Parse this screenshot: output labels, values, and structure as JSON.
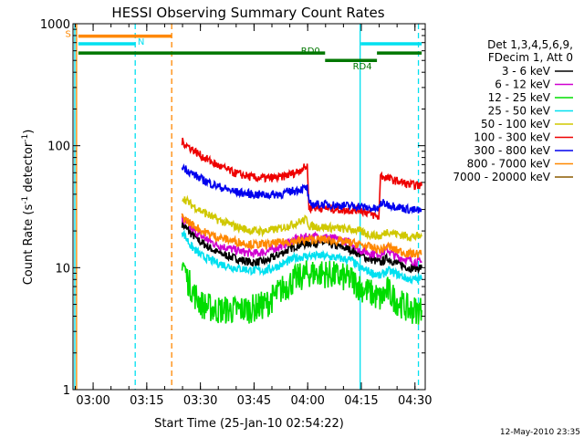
{
  "chart_data": {
    "type": "line",
    "title": "HESSI Observing Summary Count Rates",
    "xlabel": "Start Time (25-Jan-10 02:54:22)",
    "ylabel_main": "Count Rate (s",
    "ylabel_sup1": "-1",
    "ylabel_mid": " detector",
    "ylabel_sup2": "-1",
    "ylabel_end": ")",
    "x_unit": "minutes since 02:54:22 (axis start)",
    "xlim": [
      0,
      98.5
    ],
    "ylim": [
      1,
      1000
    ],
    "yscale": "log",
    "x_ticks": [
      {
        "label": "03:00",
        "x": 5.63
      },
      {
        "label": "03:15",
        "x": 20.63
      },
      {
        "label": "03:30",
        "x": 35.63
      },
      {
        "label": "03:45",
        "x": 50.63
      },
      {
        "label": "04:00",
        "x": 65.63
      },
      {
        "label": "04:15",
        "x": 80.63
      },
      {
        "label": "04:30",
        "x": 95.63
      }
    ],
    "y_ticks": [
      {
        "label": "1",
        "y": 1
      },
      {
        "label": "10",
        "y": 10
      },
      {
        "label": "100",
        "y": 100
      },
      {
        "label": "1000",
        "y": 1000
      }
    ],
    "legend": {
      "header": [
        "Det 1,3,4,5,6,9,",
        "FDecim 1, Att 0"
      ],
      "placement": "right"
    },
    "series": [
      {
        "name": "3 - 6 keV",
        "color": "#000000",
        "points": [
          [
            30.5,
            23
          ],
          [
            33,
            19
          ],
          [
            36,
            16
          ],
          [
            40,
            13.5
          ],
          [
            45,
            12
          ],
          [
            50,
            11
          ],
          [
            54,
            11.3
          ],
          [
            58,
            13
          ],
          [
            62,
            15
          ],
          [
            66,
            16
          ],
          [
            70,
            16
          ],
          [
            74,
            15
          ],
          [
            78,
            14
          ],
          [
            80,
            13
          ],
          [
            82,
            12
          ],
          [
            84,
            11.5
          ],
          [
            86,
            11
          ],
          [
            88,
            12
          ],
          [
            90,
            11
          ],
          [
            92,
            10.5
          ],
          [
            94,
            10
          ],
          [
            97.5,
            10
          ]
        ]
      },
      {
        "name": "6 - 12 keV",
        "color": "#d000d0",
        "points": [
          [
            30.5,
            25
          ],
          [
            33,
            21
          ],
          [
            36,
            18
          ],
          [
            40,
            15.5
          ],
          [
            45,
            14
          ],
          [
            50,
            13
          ],
          [
            54,
            13.5
          ],
          [
            58,
            15
          ],
          [
            62,
            17
          ],
          [
            66,
            18
          ],
          [
            70,
            18
          ],
          [
            74,
            17
          ],
          [
            78,
            16
          ],
          [
            80,
            14
          ],
          [
            82,
            13.5
          ],
          [
            84,
            13
          ],
          [
            86,
            13
          ],
          [
            88,
            14
          ],
          [
            90,
            12.5
          ],
          [
            92,
            12
          ],
          [
            94,
            11.5
          ],
          [
            97.5,
            11
          ]
        ]
      },
      {
        "name": "12 - 25 keV",
        "color": "#00dd00",
        "points": [
          [
            30.5,
            12
          ],
          [
            32,
            8
          ],
          [
            34,
            6
          ],
          [
            36,
            5
          ],
          [
            40,
            4.5
          ],
          [
            45,
            4.5
          ],
          [
            50,
            4.6
          ],
          [
            54,
            5
          ],
          [
            58,
            6.5
          ],
          [
            62,
            8
          ],
          [
            66,
            9
          ],
          [
            70,
            9
          ],
          [
            74,
            8.5
          ],
          [
            78,
            8
          ],
          [
            80,
            7
          ],
          [
            82,
            6.5
          ],
          [
            84,
            6
          ],
          [
            86,
            5.5
          ],
          [
            88,
            6.5
          ],
          [
            90,
            5.5
          ],
          [
            92,
            5
          ],
          [
            94,
            4.5
          ],
          [
            97.5,
            4.5
          ]
        ]
      },
      {
        "name": "25 - 50 keV",
        "color": "#00e0f0",
        "points": [
          [
            30.5,
            20
          ],
          [
            33,
            15
          ],
          [
            36,
            12.5
          ],
          [
            40,
            11
          ],
          [
            45,
            10
          ],
          [
            50,
            9.5
          ],
          [
            54,
            9.5
          ],
          [
            58,
            10.5
          ],
          [
            62,
            12
          ],
          [
            66,
            12.5
          ],
          [
            70,
            12.5
          ],
          [
            74,
            12
          ],
          [
            78,
            11.5
          ],
          [
            80,
            10
          ],
          [
            82,
            9.5
          ],
          [
            84,
            9
          ],
          [
            86,
            8.5
          ],
          [
            88,
            9.5
          ],
          [
            90,
            9
          ],
          [
            92,
            8.5
          ],
          [
            94,
            8
          ],
          [
            97.5,
            8
          ]
        ]
      },
      {
        "name": "50 - 100 keV",
        "color": "#d0c800",
        "points": [
          [
            30.5,
            38
          ],
          [
            33,
            33
          ],
          [
            36,
            29
          ],
          [
            40,
            25
          ],
          [
            45,
            22
          ],
          [
            50,
            20
          ],
          [
            54,
            20
          ],
          [
            58,
            21
          ],
          [
            62,
            23
          ],
          [
            65.5,
            25
          ],
          [
            66,
            22
          ],
          [
            70,
            21.5
          ],
          [
            74,
            21
          ],
          [
            78,
            20.5
          ],
          [
            80,
            20
          ],
          [
            82,
            19
          ],
          [
            84,
            18.5
          ],
          [
            86,
            18
          ],
          [
            88,
            20
          ],
          [
            90,
            19
          ],
          [
            92,
            18.5
          ],
          [
            94,
            18
          ],
          [
            97.5,
            18
          ]
        ]
      },
      {
        "name": "100 - 300 keV",
        "color": "#ee0000",
        "points": [
          [
            30.5,
            108
          ],
          [
            33,
            95
          ],
          [
            36,
            82
          ],
          [
            40,
            70
          ],
          [
            45,
            60
          ],
          [
            50,
            55
          ],
          [
            54,
            54
          ],
          [
            58,
            55
          ],
          [
            62,
            60
          ],
          [
            65.5,
            68
          ],
          [
            66,
            31
          ],
          [
            70,
            31
          ],
          [
            74,
            30
          ],
          [
            78,
            29.5
          ],
          [
            80,
            30
          ],
          [
            82,
            28.5
          ],
          [
            84,
            27
          ],
          [
            85.5,
            26
          ],
          [
            86,
            57
          ],
          [
            88,
            54
          ],
          [
            90,
            52
          ],
          [
            92,
            50
          ],
          [
            94,
            48
          ],
          [
            97.5,
            47
          ]
        ]
      },
      {
        "name": "300 - 800 keV",
        "color": "#0000ee",
        "points": [
          [
            30.5,
            68
          ],
          [
            33,
            60
          ],
          [
            36,
            53
          ],
          [
            40,
            47
          ],
          [
            45,
            42
          ],
          [
            50,
            40
          ],
          [
            54,
            39.5
          ],
          [
            58,
            40
          ],
          [
            62,
            43
          ],
          [
            65.5,
            45
          ],
          [
            66,
            33
          ],
          [
            70,
            33
          ],
          [
            74,
            32.5
          ],
          [
            78,
            32
          ],
          [
            80,
            32
          ],
          [
            82,
            31
          ],
          [
            84,
            30.5
          ],
          [
            85.5,
            30
          ],
          [
            86,
            34
          ],
          [
            88,
            33
          ],
          [
            90,
            32
          ],
          [
            92,
            31
          ],
          [
            94,
            30
          ],
          [
            97.5,
            29
          ]
        ]
      },
      {
        "name": "800 - 7000 keV",
        "color": "#ff8800",
        "points": [
          [
            30.5,
            26
          ],
          [
            33,
            23
          ],
          [
            36,
            20
          ],
          [
            40,
            18
          ],
          [
            45,
            16.5
          ],
          [
            50,
            15.5
          ],
          [
            54,
            15.5
          ],
          [
            58,
            16
          ],
          [
            62,
            16.5
          ],
          [
            66,
            17
          ],
          [
            70,
            17
          ],
          [
            74,
            16.5
          ],
          [
            78,
            16
          ],
          [
            80,
            15.5
          ],
          [
            82,
            15
          ],
          [
            84,
            14.5
          ],
          [
            86,
            14
          ],
          [
            88,
            15
          ],
          [
            90,
            14
          ],
          [
            92,
            13.5
          ],
          [
            94,
            13
          ],
          [
            97.5,
            13
          ]
        ]
      },
      {
        "name": "7000 - 20000 keV",
        "color": "#8b5a00",
        "points": []
      }
    ],
    "annotations": [
      {
        "label": "S",
        "color": "#ff8800",
        "x_start": 1.5,
        "x_end": 27.5,
        "y": 790
      },
      {
        "label": "N",
        "color": "#00e0f0",
        "x_start": 1.5,
        "x_end": 17.5,
        "y": 685
      },
      {
        "label": "RD0",
        "color": "#007700",
        "x_start": 1.5,
        "x_end": 70.5,
        "y": 575
      },
      {
        "label": "RD4",
        "color": "#007700",
        "x_start": 70.5,
        "x_end": 85,
        "y": 500
      }
    ],
    "extra_bars": [
      {
        "color": "#00e0f0",
        "x_start": 80.5,
        "x_end": 97.5,
        "y": 685
      },
      {
        "color": "#007700",
        "x_start": 85,
        "x_end": 97.5,
        "y": 575
      }
    ],
    "vlines": [
      {
        "x": 0.5,
        "color": "#00e0f0",
        "style": "solid"
      },
      {
        "x": 1.0,
        "color": "#ff8800",
        "style": "solid"
      },
      {
        "x": 17.4,
        "color": "#00e0f0",
        "style": "dashed"
      },
      {
        "x": 27.6,
        "color": "#ff8800",
        "style": "dashed"
      },
      {
        "x": 80.3,
        "color": "#00e0f0",
        "style": "solid"
      },
      {
        "x": 96.6,
        "color": "#00e0f0",
        "style": "dashed"
      }
    ],
    "grid": false
  },
  "footer": {
    "timestamp": "12-May-2010 23:35"
  }
}
